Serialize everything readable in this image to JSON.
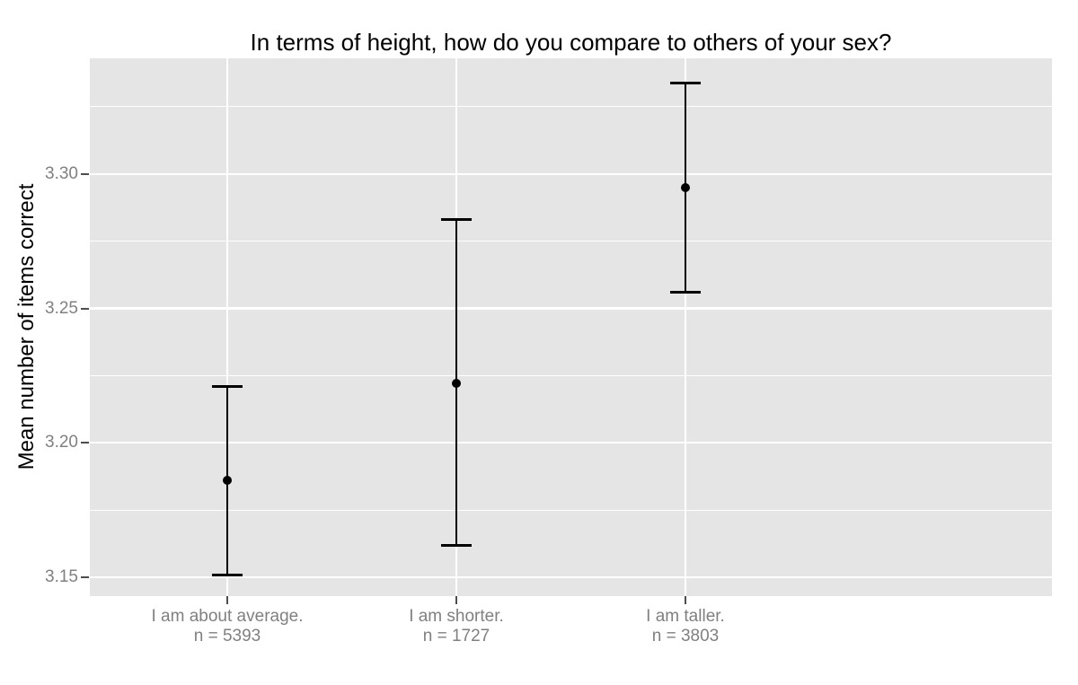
{
  "title": "In terms of height, how do you compare to others of your sex?",
  "chart_data": {
    "type": "errorbar",
    "title": "In terms of height, how do you compare to others of your sex?",
    "xlabel": "",
    "ylabel": "Mean number of items correct",
    "categories": [
      "I am about average.",
      "I am shorter.",
      "I am taller."
    ],
    "n_labels": [
      "n = 5393",
      "n = 1727",
      "n = 3803"
    ],
    "sample_sizes": [
      5393,
      1727,
      3803
    ],
    "series": [
      {
        "name": "mean",
        "values": [
          3.186,
          3.222,
          3.295
        ]
      },
      {
        "name": "ci_lower",
        "values": [
          3.151,
          3.162,
          3.256
        ]
      },
      {
        "name": "ci_upper",
        "values": [
          3.221,
          3.283,
          3.334
        ]
      }
    ],
    "yticks": [
      3.15,
      3.2,
      3.25,
      3.3
    ],
    "ytick_labels": [
      "3.15",
      "3.20",
      "3.25",
      "3.30"
    ],
    "yminor": [
      3.175,
      3.225,
      3.275,
      3.325
    ],
    "ylim": [
      3.143,
      3.343
    ],
    "grid": "major-and-minor-horizontal, major-vertical-at-categories",
    "legend": false
  },
  "style": {
    "panel_bg": "#E5E5E5",
    "grid_major_color": "#FFFFFF",
    "grid_minor_color": "#FFFFFF",
    "data_color": "#000000",
    "axis_text_color": "#808080",
    "tick_mark_color": "#4D4D4D",
    "title_color": "#000000"
  }
}
